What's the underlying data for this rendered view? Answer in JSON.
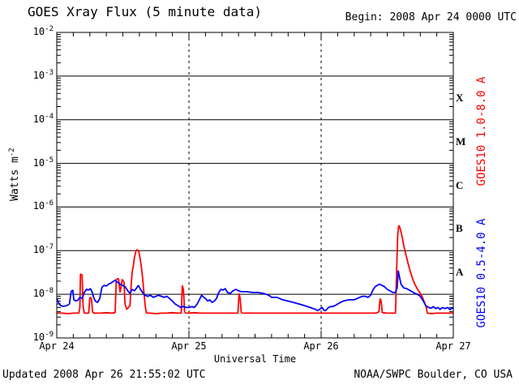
{
  "title": "GOES Xray Flux (5 minute data)",
  "begin_label": "Begin:  2008 Apr 24 0000 UTC",
  "y_axis": {
    "title_base": "Watts m",
    "title_exponent": "-2"
  },
  "footer": {
    "updated": "Updated 2008 Apr 26 21:55:02 UTC",
    "source": "NOAA/SWPC Boulder, CO USA"
  },
  "colors": {
    "background": "#ffffff",
    "axis": "#000000",
    "goes_long": "#ff0000",
    "goes_short": "#0000ff"
  },
  "chart_data": {
    "type": "line",
    "title": "GOES Xray Flux (5 minute data)",
    "xlabel": "Universal Time",
    "ylabel": "Watts m^-2",
    "x_unit": "hours since 2008 Apr 24 0000 UTC",
    "xlim": [
      0,
      72
    ],
    "yscale": "log",
    "ylim": [
      1e-09,
      0.01
    ],
    "x_tick_labels": [
      "Apr 24",
      "Apr 25",
      "Apr 26",
      "Apr 27"
    ],
    "x_tick_hours": [
      0,
      24,
      48,
      72
    ],
    "x_minor_tick_hours": 3,
    "y_tick_exponents": [
      -2,
      -3,
      -4,
      -5,
      -6,
      -7,
      -8,
      -9
    ],
    "grid": {
      "horizontal_solid_at": [
        0.001,
        0.0001,
        1e-05,
        1e-06,
        1e-07,
        1e-08
      ],
      "vertical_dashed_at_hours": [
        24,
        48
      ]
    },
    "flare_classes": [
      {
        "letter": "X",
        "between_exponents": [
          -4,
          -3
        ]
      },
      {
        "letter": "M",
        "between_exponents": [
          -5,
          -4
        ]
      },
      {
        "letter": "C",
        "between_exponents": [
          -6,
          -5
        ]
      },
      {
        "letter": "B",
        "between_exponents": [
          -7,
          -6
        ]
      },
      {
        "letter": "A",
        "between_exponents": [
          -8,
          -7
        ]
      }
    ],
    "legend_position": "right-outside-rotated",
    "series": [
      {
        "name": "GOES10 1.0-8.0 A",
        "color": "#ff0000",
        "points": [
          [
            0,
            3.7e-09
          ],
          [
            1,
            3.7e-09
          ],
          [
            2,
            3.6e-09
          ],
          [
            3,
            3.7e-09
          ],
          [
            4,
            3.7e-09
          ],
          [
            4.2,
            5e-09
          ],
          [
            4.3,
            2.9e-08
          ],
          [
            4.6,
            2.8e-08
          ],
          [
            4.8,
            5e-09
          ],
          [
            5,
            3.7e-09
          ],
          [
            5.8,
            3.7e-09
          ],
          [
            6,
            8.5e-09
          ],
          [
            6.3,
            8e-09
          ],
          [
            6.5,
            4e-09
          ],
          [
            6.7,
            3.7e-09
          ],
          [
            8,
            3.7e-09
          ],
          [
            9,
            3.8e-09
          ],
          [
            10,
            3.7e-09
          ],
          [
            10.6,
            3.8e-09
          ],
          [
            10.8,
            2.2e-08
          ],
          [
            11.2,
            2.3e-08
          ],
          [
            11.5,
            1.1e-08
          ],
          [
            11.9,
            2.2e-08
          ],
          [
            12.2,
            1.9e-08
          ],
          [
            12.4,
            6e-09
          ],
          [
            12.7,
            4.5e-09
          ],
          [
            13,
            5e-09
          ],
          [
            13.3,
            5.5e-09
          ],
          [
            13.5,
            1.6e-08
          ],
          [
            13.7,
            3.2e-08
          ],
          [
            13.9,
            4.5e-08
          ],
          [
            14.1,
            7e-08
          ],
          [
            14.4,
            1e-07
          ],
          [
            14.6,
            1.05e-07
          ],
          [
            14.9,
            9.5e-08
          ],
          [
            15.2,
            6e-08
          ],
          [
            15.5,
            3e-08
          ],
          [
            15.8,
            1.2e-08
          ],
          [
            16.1,
            5e-09
          ],
          [
            16.3,
            3.7e-09
          ],
          [
            17,
            3.7e-09
          ],
          [
            18,
            3.6e-09
          ],
          [
            19,
            3.7e-09
          ],
          [
            20,
            3.7e-09
          ],
          [
            21,
            3.8e-09
          ],
          [
            22,
            3.7e-09
          ],
          [
            22.6,
            3.7e-09
          ],
          [
            22.8,
            1.6e-08
          ],
          [
            23,
            1.3e-08
          ],
          [
            23.2,
            4e-09
          ],
          [
            23.4,
            3.7e-09
          ],
          [
            24,
            3.7e-09
          ],
          [
            25,
            3.8e-09
          ],
          [
            26,
            3.7e-09
          ],
          [
            28,
            3.7e-09
          ],
          [
            30,
            3.7e-09
          ],
          [
            32,
            3.7e-09
          ],
          [
            32.9,
            3.7e-09
          ],
          [
            33.1,
            1.05e-08
          ],
          [
            33.3,
            8e-09
          ],
          [
            33.5,
            3.8e-09
          ],
          [
            34,
            3.7e-09
          ],
          [
            36,
            3.7e-09
          ],
          [
            38,
            3.7e-09
          ],
          [
            40,
            3.7e-09
          ],
          [
            42,
            3.7e-09
          ],
          [
            44,
            3.7e-09
          ],
          [
            46,
            3.7e-09
          ],
          [
            48,
            3.7e-09
          ],
          [
            50,
            3.7e-09
          ],
          [
            52,
            3.7e-09
          ],
          [
            54,
            3.7e-09
          ],
          [
            56,
            3.7e-09
          ],
          [
            58,
            3.7e-09
          ],
          [
            58.5,
            4e-09
          ],
          [
            58.7,
            8e-09
          ],
          [
            58.9,
            7e-09
          ],
          [
            59.1,
            3.8e-09
          ],
          [
            60,
            3.7e-09
          ],
          [
            61,
            3.7e-09
          ],
          [
            61.5,
            3.7e-09
          ],
          [
            61.7,
            3e-08
          ],
          [
            61.9,
            2.2e-07
          ],
          [
            62.1,
            3.8e-07
          ],
          [
            62.3,
            3.4e-07
          ],
          [
            62.6,
            2.4e-07
          ],
          [
            63,
            1.3e-07
          ],
          [
            63.4,
            8e-08
          ],
          [
            63.8,
            5e-08
          ],
          [
            64.2,
            3.3e-08
          ],
          [
            64.6,
            2.3e-08
          ],
          [
            65,
            1.7e-08
          ],
          [
            65.5,
            1.3e-08
          ],
          [
            66,
            1.05e-08
          ],
          [
            66.5,
            8e-09
          ],
          [
            67,
            5.5e-09
          ],
          [
            67.3,
            3.7e-09
          ],
          [
            68,
            3.6e-09
          ],
          [
            69,
            3.7e-09
          ],
          [
            70,
            3.7e-09
          ],
          [
            71,
            3.7e-09
          ],
          [
            72,
            3.7e-09
          ]
        ]
      },
      {
        "name": "GOES10 0.5-4.0 A",
        "color": "#0000ff",
        "points": [
          [
            0,
            8e-09
          ],
          [
            0.3,
            6.5e-09
          ],
          [
            0.7,
            5.5e-09
          ],
          [
            1.2,
            5.3e-09
          ],
          [
            1.8,
            5.5e-09
          ],
          [
            2.3,
            6e-09
          ],
          [
            2.6,
            1.15e-08
          ],
          [
            2.9,
            1.25e-08
          ],
          [
            3.1,
            7.5e-09
          ],
          [
            3.5,
            7e-09
          ],
          [
            3.9,
            7.5e-09
          ],
          [
            4.2,
            8.5e-09
          ],
          [
            4.6,
            8e-09
          ],
          [
            5,
            1.1e-08
          ],
          [
            5.4,
            1.3e-08
          ],
          [
            5.8,
            1.25e-08
          ],
          [
            6.1,
            1.35e-08
          ],
          [
            6.4,
            1.15e-08
          ],
          [
            6.7,
            8.5e-09
          ],
          [
            7,
            7e-09
          ],
          [
            7.4,
            6.5e-09
          ],
          [
            7.8,
            8e-09
          ],
          [
            8.2,
            1.45e-08
          ],
          [
            8.6,
            1.6e-08
          ],
          [
            9,
            1.55e-08
          ],
          [
            9.4,
            1.7e-08
          ],
          [
            9.8,
            1.8e-08
          ],
          [
            10.2,
            1.95e-08
          ],
          [
            10.6,
            2.1e-08
          ],
          [
            11,
            1.9e-08
          ],
          [
            11.4,
            1.75e-08
          ],
          [
            11.9,
            1.6e-08
          ],
          [
            12.4,
            1.5e-08
          ],
          [
            12.9,
            1.2e-08
          ],
          [
            13.3,
            1.05e-08
          ],
          [
            13.7,
            1.3e-08
          ],
          [
            14.1,
            1.2e-08
          ],
          [
            14.5,
            1.4e-08
          ],
          [
            14.8,
            1.6e-08
          ],
          [
            15.2,
            1.3e-08
          ],
          [
            15.6,
            1.1e-08
          ],
          [
            16,
            9.5e-09
          ],
          [
            16.5,
            9e-09
          ],
          [
            17,
            9.5e-09
          ],
          [
            17.5,
            8.5e-09
          ],
          [
            18,
            9e-09
          ],
          [
            18.5,
            9.5e-09
          ],
          [
            19,
            9e-09
          ],
          [
            19.5,
            8.5e-09
          ],
          [
            20,
            9e-09
          ],
          [
            20.5,
            8e-09
          ],
          [
            21,
            7e-09
          ],
          [
            21.5,
            6e-09
          ],
          [
            22,
            5.5e-09
          ],
          [
            22.5,
            5e-09
          ],
          [
            23,
            5.3e-09
          ],
          [
            23.5,
            5e-09
          ],
          [
            24,
            5e-09
          ],
          [
            24.5,
            5.2e-09
          ],
          [
            25,
            5e-09
          ],
          [
            25.5,
            6e-09
          ],
          [
            26,
            8e-09
          ],
          [
            26.3,
            9.5e-09
          ],
          [
            26.7,
            8.5e-09
          ],
          [
            27,
            8e-09
          ],
          [
            27.4,
            7e-09
          ],
          [
            27.8,
            7.5e-09
          ],
          [
            28.2,
            6.5e-09
          ],
          [
            28.6,
            7e-09
          ],
          [
            29,
            8e-09
          ],
          [
            29.4,
            1.1e-08
          ],
          [
            29.8,
            1.3e-08
          ],
          [
            30.2,
            1.25e-08
          ],
          [
            30.6,
            1.35e-08
          ],
          [
            31,
            1.1e-08
          ],
          [
            31.5,
            1.05e-08
          ],
          [
            32,
            1.2e-08
          ],
          [
            32.5,
            1.3e-08
          ],
          [
            33,
            1.2e-08
          ],
          [
            33.5,
            1.15e-08
          ],
          [
            34.5,
            1.15e-08
          ],
          [
            35.5,
            1.1e-08
          ],
          [
            36.5,
            1.1e-08
          ],
          [
            37.5,
            1.05e-08
          ],
          [
            38.5,
            9.5e-09
          ],
          [
            39,
            8.5e-09
          ],
          [
            40,
            8.5e-09
          ],
          [
            41,
            7.5e-09
          ],
          [
            42,
            7e-09
          ],
          [
            43,
            6.5e-09
          ],
          [
            44,
            6e-09
          ],
          [
            45,
            5.5e-09
          ],
          [
            46,
            5e-09
          ],
          [
            47,
            4.5e-09
          ],
          [
            47.4,
            4.2e-09
          ],
          [
            47.8,
            4.6e-09
          ],
          [
            48.2,
            5e-09
          ],
          [
            48.5,
            4.3e-09
          ],
          [
            48.8,
            4.2e-09
          ],
          [
            49.2,
            4.8e-09
          ],
          [
            49.6,
            5.2e-09
          ],
          [
            50,
            5.2e-09
          ],
          [
            50.5,
            5.5e-09
          ],
          [
            51,
            6e-09
          ],
          [
            51.5,
            6.5e-09
          ],
          [
            52,
            7e-09
          ],
          [
            53,
            7.5e-09
          ],
          [
            54,
            7.5e-09
          ],
          [
            54.5,
            8e-09
          ],
          [
            55,
            8.5e-09
          ],
          [
            55.5,
            9e-09
          ],
          [
            56,
            9e-09
          ],
          [
            56.5,
            8.5e-09
          ],
          [
            57,
            9.5e-09
          ],
          [
            57.4,
            1.25e-08
          ],
          [
            57.8,
            1.5e-08
          ],
          [
            58.2,
            1.6e-08
          ],
          [
            58.6,
            1.7e-08
          ],
          [
            59,
            1.6e-08
          ],
          [
            59.5,
            1.5e-08
          ],
          [
            60,
            1.3e-08
          ],
          [
            60.5,
            1.2e-08
          ],
          [
            61,
            1.1e-08
          ],
          [
            61.5,
            1.1e-08
          ],
          [
            61.8,
            1.4e-08
          ],
          [
            62,
            3.5e-08
          ],
          [
            62.2,
            2.6e-08
          ],
          [
            62.5,
            1.7e-08
          ],
          [
            63,
            1.4e-08
          ],
          [
            63.5,
            1.35e-08
          ],
          [
            64,
            1.25e-08
          ],
          [
            64.5,
            1.15e-08
          ],
          [
            65,
            1.05e-08
          ],
          [
            65.5,
            1e-08
          ],
          [
            66,
            9e-09
          ],
          [
            66.4,
            7.5e-09
          ],
          [
            66.7,
            6.5e-09
          ],
          [
            67,
            5.5e-09
          ],
          [
            67.5,
            5e-09
          ],
          [
            68,
            4.8e-09
          ],
          [
            68.4,
            5.2e-09
          ],
          [
            68.8,
            4.7e-09
          ],
          [
            69.2,
            5e-09
          ],
          [
            69.6,
            4.5e-09
          ],
          [
            70,
            5e-09
          ],
          [
            70.5,
            4.7e-09
          ],
          [
            71,
            5e-09
          ],
          [
            71.4,
            4.4e-09
          ],
          [
            71.7,
            4.9e-09
          ],
          [
            72,
            4.6e-09
          ]
        ]
      }
    ]
  }
}
